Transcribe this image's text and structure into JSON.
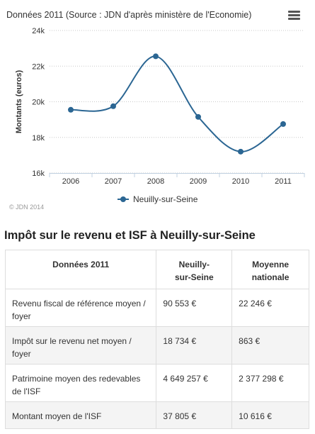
{
  "chart_data": {
    "type": "line",
    "title": "Données 2011 (Source : JDN d'après ministère de l'Economie)",
    "ylabel": "Montants (euros)",
    "xlabel": "",
    "categories": [
      "2006",
      "2007",
      "2008",
      "2009",
      "2010",
      "2011"
    ],
    "series": [
      {
        "name": "Neuilly-sur-Seine",
        "values": [
          19550,
          19750,
          22550,
          19150,
          17200,
          18750
        ]
      }
    ],
    "ylim": [
      16000,
      24000
    ],
    "yticks": [
      16000,
      18000,
      20000,
      22000,
      24000
    ],
    "ytick_labels": [
      "16k",
      "18k",
      "20k",
      "22k",
      "24k"
    ],
    "grid": "horizontal dotted",
    "legend": "bottom-center",
    "line_color": "#2b6693",
    "credits": "© JDN 2014"
  },
  "icons": {
    "menu": "hamburger-menu-icon",
    "legend_marker": "circle-marker-icon"
  },
  "table": {
    "title": "Impôt sur le revenu et ISF à Neuilly-sur-Seine",
    "headers": [
      "Données 2011",
      "Neuilly-\nsur-Seine",
      "Moyenne\nnationale"
    ],
    "rows": [
      [
        "Revenu fiscal de référence moyen / foyer",
        "90 553 €",
        "22 246 €"
      ],
      [
        "Impôt sur le revenu net moyen / foyer",
        "18 734 €",
        "863 €"
      ],
      [
        "Patrimoine moyen des redevables de l'ISF",
        "4 649 257 €",
        "2 377 298 €"
      ],
      [
        "Montant moyen de l'ISF",
        "37 805 €",
        "10 616 €"
      ]
    ]
  }
}
